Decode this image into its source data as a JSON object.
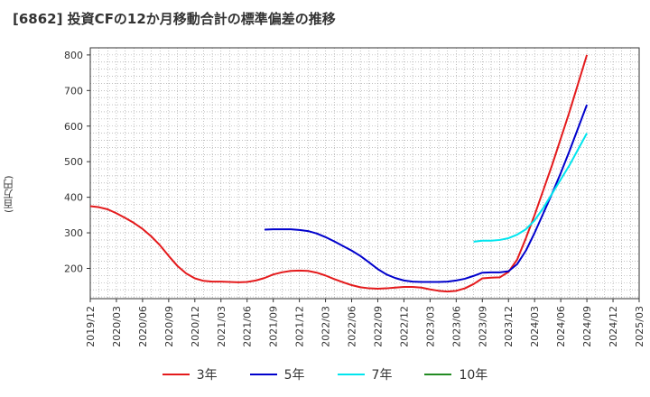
{
  "title": "[6862]  投資CFの12か月移動合計の標準偏差の推移",
  "ylabel": "(百万円)",
  "chart_data": {
    "type": "line",
    "title": "[6862]  投資CFの12か月移動合計の標準偏差の推移",
    "ylabel": "(百万円)",
    "xlabel": "",
    "ylim": [
      115,
      820
    ],
    "yticks": [
      200,
      300,
      400,
      500,
      600,
      700,
      800
    ],
    "xticks": [
      "2019/12",
      "2020/03",
      "2020/06",
      "2020/09",
      "2020/12",
      "2021/03",
      "2021/06",
      "2021/09",
      "2021/12",
      "2022/03",
      "2022/06",
      "2022/09",
      "2022/12",
      "2023/03",
      "2023/06",
      "2023/09",
      "2023/12",
      "2024/03",
      "2024/06",
      "2024/09",
      "2024/12",
      "2025/03"
    ],
    "grid": true,
    "legend_position": "bottom",
    "series": [
      {
        "name": "3年",
        "color": "#e41a1c",
        "x": [
          "2019/12",
          "2020/01",
          "2020/02",
          "2020/03",
          "2020/04",
          "2020/05",
          "2020/06",
          "2020/07",
          "2020/08",
          "2020/09",
          "2020/10",
          "2020/11",
          "2020/12",
          "2021/01",
          "2021/02",
          "2021/03",
          "2021/04",
          "2021/05",
          "2021/06",
          "2021/07",
          "2021/08",
          "2021/09",
          "2021/10",
          "2021/11",
          "2021/12",
          "2022/01",
          "2022/02",
          "2022/03",
          "2022/04",
          "2022/05",
          "2022/06",
          "2022/07",
          "2022/08",
          "2022/09",
          "2022/10",
          "2022/11",
          "2022/12",
          "2023/01",
          "2023/02",
          "2023/03",
          "2023/04",
          "2023/05",
          "2023/06",
          "2023/07",
          "2023/08",
          "2023/09",
          "2023/10",
          "2023/11",
          "2023/12",
          "2024/01",
          "2024/02",
          "2024/03",
          "2024/04",
          "2024/05",
          "2024/06",
          "2024/07",
          "2024/08",
          "2024/09"
        ],
        "values": [
          375,
          372,
          366,
          355,
          342,
          328,
          311,
          290,
          265,
          235,
          207,
          186,
          172,
          165,
          163,
          163,
          162,
          161,
          162,
          166,
          173,
          183,
          189,
          193,
          194,
          193,
          188,
          180,
          170,
          161,
          153,
          147,
          144,
          143,
          144,
          146,
          148,
          148,
          146,
          141,
          137,
          135,
          137,
          144,
          156,
          172,
          174,
          175,
          190,
          225,
          285,
          350,
          420,
          490,
          565,
          640,
          720,
          800
        ]
      },
      {
        "name": "5年",
        "color": "#0000cc",
        "x": [
          "2021/08",
          "2021/09",
          "2021/10",
          "2021/11",
          "2021/12",
          "2022/01",
          "2022/02",
          "2022/03",
          "2022/04",
          "2022/05",
          "2022/06",
          "2022/07",
          "2022/08",
          "2022/09",
          "2022/10",
          "2022/11",
          "2022/12",
          "2023/01",
          "2023/02",
          "2023/03",
          "2023/04",
          "2023/05",
          "2023/06",
          "2023/07",
          "2023/08",
          "2023/09",
          "2023/10",
          "2023/11",
          "2023/12",
          "2024/01",
          "2024/02",
          "2024/03",
          "2024/04",
          "2024/05",
          "2024/06",
          "2024/07",
          "2024/08",
          "2024/09"
        ],
        "values": [
          309,
          310,
          310,
          310,
          308,
          305,
          298,
          288,
          276,
          263,
          250,
          235,
          217,
          198,
          183,
          173,
          166,
          163,
          162,
          162,
          162,
          163,
          166,
          171,
          179,
          188,
          189,
          189,
          192,
          212,
          250,
          300,
          355,
          410,
          468,
          530,
          595,
          660
        ]
      },
      {
        "name": "7年",
        "color": "#00e5ee",
        "x": [
          "2023/08",
          "2023/09",
          "2023/10",
          "2023/11",
          "2023/12",
          "2024/01",
          "2024/02",
          "2024/03",
          "2024/04",
          "2024/05",
          "2024/06",
          "2024/07",
          "2024/08",
          "2024/09"
        ],
        "values": [
          275,
          278,
          278,
          280,
          285,
          295,
          310,
          335,
          370,
          410,
          450,
          490,
          535,
          580
        ]
      },
      {
        "name": "10年",
        "color": "#228b22",
        "x": [],
        "values": []
      }
    ]
  }
}
